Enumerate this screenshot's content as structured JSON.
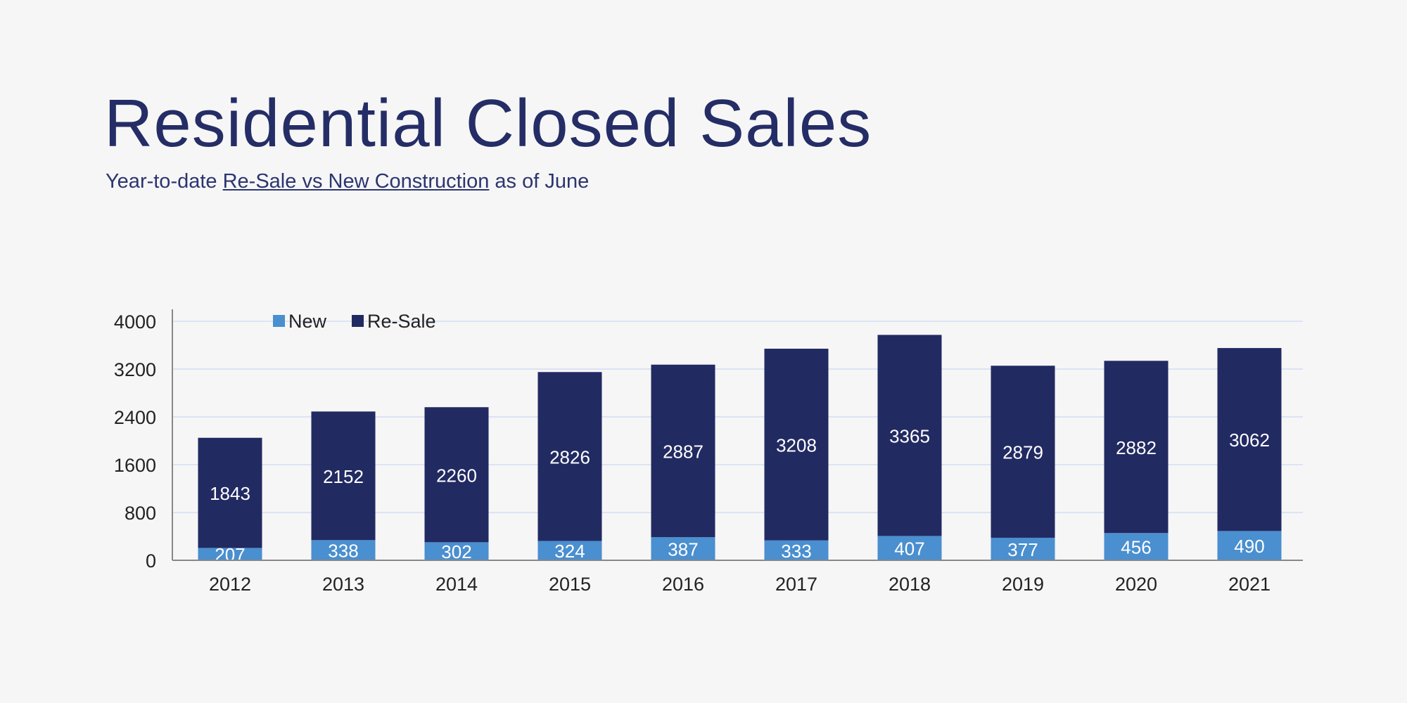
{
  "title": "Residential Closed Sales",
  "subtitle": {
    "prefix": "Year-to-date ",
    "underlined": "Re-Sale vs New Construction",
    "suffix": " as of June"
  },
  "chart_data": {
    "type": "bar",
    "stacked": true,
    "categories": [
      "2012",
      "2013",
      "2014",
      "2015",
      "2016",
      "2017",
      "2018",
      "2019",
      "2020",
      "2021"
    ],
    "series": [
      {
        "name": "New",
        "color": "#4a8fcf",
        "values": [
          207,
          338,
          302,
          324,
          387,
          333,
          407,
          377,
          456,
          490
        ]
      },
      {
        "name": "Re-Sale",
        "color": "#222a62",
        "values": [
          1843,
          2152,
          2260,
          2826,
          2887,
          3208,
          3365,
          2879,
          2882,
          3062
        ]
      }
    ],
    "yticks": [
      0,
      800,
      1600,
      2400,
      3200,
      4000
    ],
    "ylim": [
      0,
      4000
    ],
    "grid": true,
    "legend": "top-left",
    "data_labels": true
  }
}
